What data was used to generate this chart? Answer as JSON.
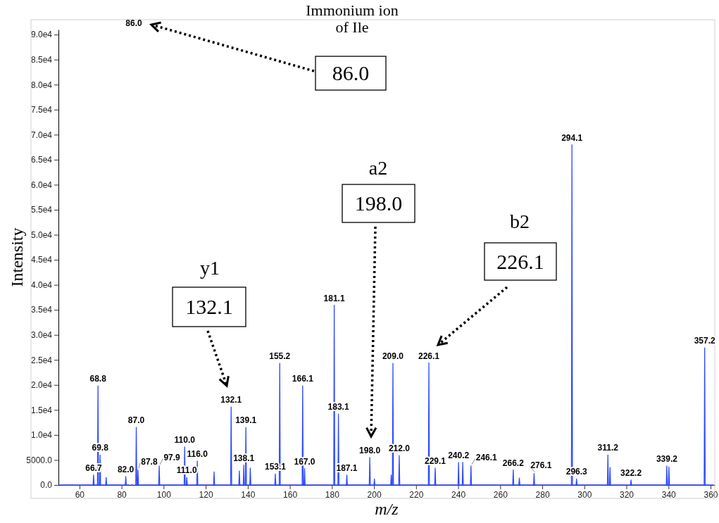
{
  "chart_data": {
    "type": "line",
    "xlabel": "m/z",
    "ylabel": "Intensity",
    "xlim": [
      50,
      362
    ],
    "xticks": [
      60,
      80,
      100,
      120,
      140,
      160,
      180,
      200,
      220,
      240,
      260,
      280,
      300,
      320,
      340,
      360
    ],
    "ylim": [
      0,
      91000
    ],
    "yticks": [
      {
        "value": 0,
        "label": "0.0"
      },
      {
        "value": 5000,
        "label": "5000.0"
      },
      {
        "value": 10000,
        "label": "1.0e4"
      },
      {
        "value": 15000,
        "label": "1.5e4"
      },
      {
        "value": 20000,
        "label": "2.0e4"
      },
      {
        "value": 25000,
        "label": "2.5e4"
      },
      {
        "value": 30000,
        "label": "3.0e4"
      },
      {
        "value": 35000,
        "label": "3.5e4"
      },
      {
        "value": 40000,
        "label": "4.0e4"
      },
      {
        "value": 45000,
        "label": "4.5e4"
      },
      {
        "value": 50000,
        "label": "5.0e4"
      },
      {
        "value": 55000,
        "label": "5.5e4"
      },
      {
        "value": 60000,
        "label": "6.0e4"
      },
      {
        "value": 65000,
        "label": "6.5e4"
      },
      {
        "value": 70000,
        "label": "7.0e4"
      },
      {
        "value": 75000,
        "label": "7.5e4"
      },
      {
        "value": 80000,
        "label": "8.0e4"
      },
      {
        "value": 85000,
        "label": "8.5e4"
      },
      {
        "value": 90000,
        "label": "9.0e4"
      }
    ],
    "grid": false,
    "marker": "none",
    "line_style": "solid",
    "series": [
      {
        "color": "#2f4bff",
        "x": [
          50.5,
          66.45,
          66.7,
          66.95,
          68.55,
          68.8,
          69.05,
          69.55,
          69.8,
          70.05,
          72.45,
          72.7,
          72.95,
          81.75,
          82.0,
          82.25,
          83.75,
          84.0,
          84.25,
          85.75,
          86.0,
          86.25,
          86.75,
          87.0,
          87.25,
          87.55,
          87.8,
          88.05,
          97.65,
          97.9,
          98.15,
          109.75,
          110.0,
          110.25,
          110.75,
          111.0,
          111.25,
          115.75,
          116.0,
          116.25,
          123.75,
          124.0,
          124.25,
          131.85,
          132.1,
          132.35,
          135.75,
          136.0,
          136.25,
          137.85,
          138.1,
          138.35,
          138.85,
          139.1,
          139.35,
          140.95,
          141.2,
          141.45,
          152.85,
          153.1,
          153.35,
          154.95,
          155.2,
          155.45,
          165.85,
          166.1,
          166.35,
          166.75,
          167.0,
          167.25,
          180.85,
          181.1,
          181.35,
          182.85,
          183.1,
          183.35,
          186.85,
          187.1,
          187.35,
          197.75,
          198.0,
          198.25,
          199.95,
          200.2,
          200.45,
          207.95,
          208.2,
          208.45,
          208.75,
          209.0,
          209.25,
          211.75,
          212.0,
          212.25,
          225.85,
          226.1,
          226.35,
          228.85,
          229.1,
          229.35,
          239.95,
          240.2,
          240.45,
          241.95,
          242.2,
          242.45,
          245.85,
          246.1,
          246.35,
          265.95,
          266.2,
          266.45,
          268.85,
          269.1,
          269.35,
          275.85,
          276.1,
          276.35,
          293.85,
          294.1,
          294.35,
          296.05,
          296.3,
          296.55,
          310.95,
          311.2,
          311.45,
          311.95,
          312.2,
          312.45,
          321.95,
          322.2,
          322.45,
          338.95,
          339.2,
          339.45,
          339.95,
          340.2,
          340.45,
          356.95,
          357.2,
          357.45,
          361.5
        ],
        "values": [
          0,
          0,
          2000,
          0,
          0,
          19800,
          0,
          0,
          6000,
          0,
          0,
          1500,
          0,
          0,
          1700,
          0,
          0,
          null,
          0,
          0,
          null,
          0,
          0,
          11500,
          0,
          0,
          3000,
          0,
          0,
          3800,
          0,
          0,
          7600,
          0,
          0,
          1500,
          0,
          0,
          4800,
          0,
          0,
          2600,
          0,
          0,
          15600,
          0,
          0,
          2800,
          0,
          0,
          4000,
          0,
          0,
          11500,
          0,
          0,
          3400,
          0,
          0,
          2200,
          0,
          0,
          24300,
          0,
          0,
          19800,
          0,
          0,
          3300,
          0,
          0,
          35900,
          0,
          0,
          14200,
          0,
          0,
          2000,
          0,
          0,
          5500,
          0,
          0,
          1200,
          0,
          0,
          2000,
          0,
          0,
          24300,
          0,
          0,
          5900,
          0,
          0,
          24400,
          0,
          0,
          3400,
          0,
          0,
          4500,
          0,
          0,
          4500,
          0,
          0,
          3800,
          0,
          0,
          3000,
          0,
          0,
          1400,
          0,
          0,
          2300,
          0,
          0,
          68000,
          0,
          0,
          1200,
          0,
          0,
          6000,
          0,
          0,
          3500,
          0,
          0,
          1000,
          0,
          0,
          3800,
          0,
          0,
          3600,
          0,
          0,
          27400,
          0,
          0
        ]
      }
    ],
    "annotations": [
      {
        "text": "66.7",
        "x": 66.7,
        "y": 2000
      },
      {
        "text": "68.8",
        "x": 68.8,
        "y": 19800
      },
      {
        "text": "69.8",
        "x": 69.8,
        "y": 6000
      },
      {
        "text": "82.0",
        "x": 82.0,
        "y": 1700
      },
      "86.0",
      {
        "text": "87.0",
        "x": 87.0,
        "y": 11500
      },
      {
        "text": "87.8",
        "x": 87.8,
        "y": 3000
      },
      {
        "text": "97.9",
        "x": 97.9,
        "y": 3800
      },
      {
        "text": "110.0",
        "x": 110.0,
        "y": 7600
      },
      {
        "text": "111.0",
        "x": 111.0,
        "y": 1500
      },
      {
        "text": "116.0",
        "x": 116.0,
        "y": 4800
      },
      {
        "text": "132.1",
        "x": 132.1,
        "y": 15600
      },
      {
        "text": "138.1",
        "x": 138.1,
        "y": 4000
      },
      {
        "text": "139.1",
        "x": 139.1,
        "y": 11500
      },
      {
        "text": "153.1",
        "x": 153.1,
        "y": 2200
      },
      {
        "text": "155.2",
        "x": 155.2,
        "y": 24300
      },
      {
        "text": "166.1",
        "x": 166.1,
        "y": 19800
      },
      {
        "text": "167.0",
        "x": 167.0,
        "y": 3300
      },
      {
        "text": "181.1",
        "x": 181.1,
        "y": 35900
      },
      {
        "text": "183.1",
        "x": 183.1,
        "y": 14200
      },
      {
        "text": "187.1",
        "x": 187.1,
        "y": 2000
      },
      {
        "text": "198.0",
        "x": 198.0,
        "y": 5500
      },
      {
        "text": "209.0",
        "x": 209.0,
        "y": 24300
      },
      {
        "text": "212.0",
        "x": 212.0,
        "y": 5900
      },
      {
        "text": "226.1",
        "x": 226.1,
        "y": 24400
      },
      {
        "text": "229.1",
        "x": 229.1,
        "y": 3400
      },
      {
        "text": "240.2",
        "x": 240.2,
        "y": 4500
      },
      {
        "text": "246.1",
        "x": 246.1,
        "y": 3800
      },
      {
        "text": "266.2",
        "x": 266.2,
        "y": 3000
      },
      {
        "text": "276.1",
        "x": 276.1,
        "y": 2300
      },
      {
        "text": "294.1",
        "x": 294.1,
        "y": 68000
      },
      {
        "text": "296.3",
        "x": 296.3,
        "y": 1200
      },
      {
        "text": "311.2",
        "x": 311.2,
        "y": 6000
      },
      {
        "text": "322.2",
        "x": 322.2,
        "y": 1000
      },
      {
        "text": "339.2",
        "x": 339.2,
        "y": 3800
      },
      {
        "text": "357.2",
        "x": 357.2,
        "y": 27400
      },
      "Immonium ion of Ile",
      "86.0",
      "y1",
      "132.1",
      "a2",
      "198.0",
      "b2",
      "226.1"
    ]
  }
}
